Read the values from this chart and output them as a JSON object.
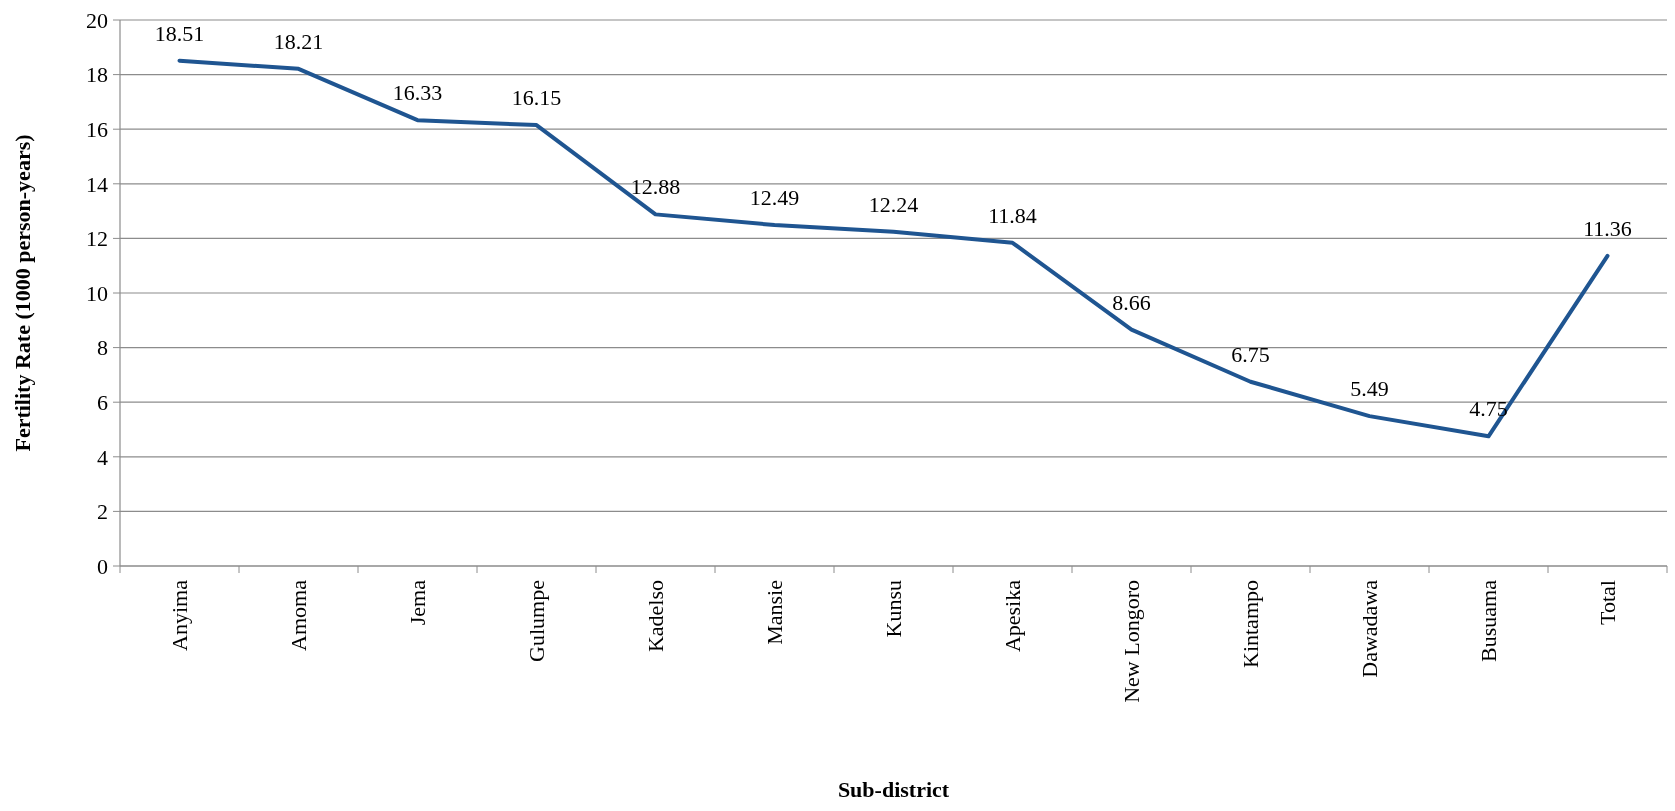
{
  "chart_data": {
    "type": "line",
    "xlabel": "Sub-district",
    "ylabel": "Fertility Rate (1000 person-years)",
    "categories": [
      "Anyima",
      "Amoma",
      "Jema",
      "Gulumpe",
      "Kadelso",
      "Mansie",
      "Kunsu",
      "Apesika",
      "New Longoro",
      "Kintampo",
      "Dawadawa",
      "Busuama",
      "Total"
    ],
    "series": [
      {
        "color": "#1f5591",
        "values": [
          18.51,
          18.21,
          16.33,
          16.15,
          12.88,
          12.49,
          12.24,
          11.84,
          8.66,
          6.75,
          5.49,
          4.75,
          11.36
        ]
      }
    ],
    "ylim": [
      0,
      20
    ],
    "yticks": [
      0,
      2,
      4,
      6,
      8,
      10,
      12,
      14,
      16,
      18,
      20
    ],
    "grid": "y",
    "data_labels": true,
    "marker": "none",
    "line_style": "solid"
  }
}
